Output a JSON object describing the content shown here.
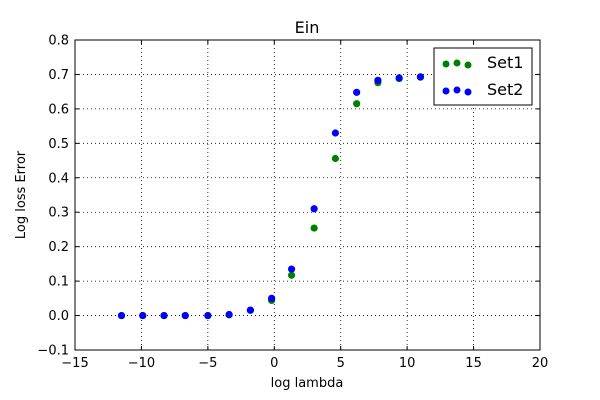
{
  "chart_data": {
    "type": "scatter",
    "title": "Ein",
    "xlabel": "log lambda",
    "ylabel": "Log loss Error",
    "xlim": [
      -15,
      20
    ],
    "ylim": [
      -0.1,
      0.8
    ],
    "xticks": [
      -15,
      -10,
      -5,
      0,
      5,
      10,
      15,
      20
    ],
    "yticks": [
      -0.1,
      0.0,
      0.1,
      0.2,
      0.3,
      0.4,
      0.5,
      0.6,
      0.7,
      0.8
    ],
    "xtick_labels": [
      "−15",
      "−10",
      "−5",
      "0",
      "5",
      "10",
      "15",
      "20"
    ],
    "ytick_labels": [
      "−0.1",
      "0.0",
      "0.1",
      "0.2",
      "0.3",
      "0.4",
      "0.5",
      "0.6",
      "0.7",
      "0.8"
    ],
    "grid": true,
    "legend_position": "top-right",
    "series": [
      {
        "name": "Set1",
        "color": "#008000",
        "x": [
          -11.5,
          -9.9,
          -8.3,
          -6.7,
          -5.0,
          -3.4,
          -1.8,
          -0.2,
          1.3,
          3.0,
          4.6,
          6.2,
          7.8,
          9.4,
          11.0
        ],
        "y": [
          0.0,
          0.0,
          0.0,
          0.0,
          0.0,
          0.002,
          0.015,
          0.044,
          0.117,
          0.254,
          0.456,
          0.615,
          0.676,
          0.688,
          0.692
        ]
      },
      {
        "name": "Set2",
        "color": "#0000ff",
        "x": [
          -11.5,
          -9.9,
          -8.3,
          -6.7,
          -5.0,
          -3.4,
          -1.8,
          -0.2,
          1.3,
          3.0,
          4.6,
          6.2,
          7.8,
          9.4,
          11.0
        ],
        "y": [
          0.0,
          0.0,
          0.0,
          0.0,
          0.0,
          0.003,
          0.016,
          0.05,
          0.135,
          0.31,
          0.53,
          0.648,
          0.683,
          0.69,
          0.693
        ]
      }
    ]
  }
}
